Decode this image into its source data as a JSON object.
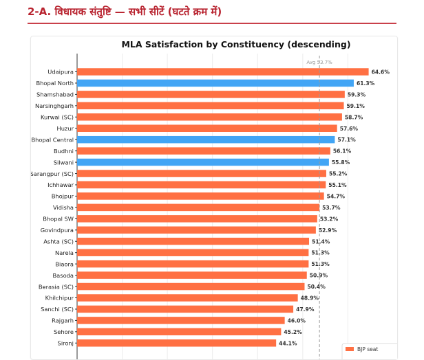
{
  "page": {
    "section_title": "2-A. विधायक संतुष्टि — सभी सीटें (घटते क्रम में)"
  },
  "colors": {
    "section_title": "#b8232f",
    "bjp": "#ff7043",
    "other": "#42a5f5",
    "avg_line": "#999999"
  },
  "chart_data": {
    "type": "bar",
    "orientation": "horizontal",
    "title": "MLA Satisfaction by Constituency (descending)",
    "xlabel": "",
    "ylabel": "",
    "xlim": [
      0,
      70
    ],
    "grid": true,
    "avg_label": "Avg 53.7%",
    "avg_value": 53.7,
    "legend": {
      "position": "bottom-right",
      "items": [
        {
          "label": "BJP seat",
          "color": "#ff7043"
        }
      ]
    },
    "bars": [
      {
        "category": "Udaipura",
        "value": 64.6,
        "label": "64.6%",
        "party": "bjp"
      },
      {
        "category": "Bhopal North",
        "value": 61.3,
        "label": "61.3%",
        "party": "other"
      },
      {
        "category": "Shamshabad",
        "value": 59.3,
        "label": "59.3%",
        "party": "bjp"
      },
      {
        "category": "Narsinghgarh",
        "value": 59.1,
        "label": "59.1%",
        "party": "bjp"
      },
      {
        "category": "Kurwai (SC)",
        "value": 58.7,
        "label": "58.7%",
        "party": "bjp"
      },
      {
        "category": "Huzur",
        "value": 57.6,
        "label": "57.6%",
        "party": "bjp"
      },
      {
        "category": "Bhopal Central",
        "value": 57.1,
        "label": "57.1%",
        "party": "other"
      },
      {
        "category": "Budhni",
        "value": 56.1,
        "label": "56.1%",
        "party": "bjp"
      },
      {
        "category": "Silwani",
        "value": 55.8,
        "label": "55.8%",
        "party": "other"
      },
      {
        "category": "Sarangpur (SC)",
        "value": 55.2,
        "label": "55.2%",
        "party": "bjp"
      },
      {
        "category": "Ichhawar",
        "value": 55.1,
        "label": "55.1%",
        "party": "bjp"
      },
      {
        "category": "Bhojpur",
        "value": 54.7,
        "label": "54.7%",
        "party": "bjp"
      },
      {
        "category": "Vidisha",
        "value": 53.7,
        "label": "53.7%",
        "party": "bjp"
      },
      {
        "category": "Bhopal SW",
        "value": 53.2,
        "label": "53.2%",
        "party": "bjp"
      },
      {
        "category": "Govindpura",
        "value": 52.9,
        "label": "52.9%",
        "party": "bjp"
      },
      {
        "category": "Ashta (SC)",
        "value": 51.4,
        "label": "51.4%",
        "party": "bjp"
      },
      {
        "category": "Narela",
        "value": 51.3,
        "label": "51.3%",
        "party": "bjp"
      },
      {
        "category": "Biaora",
        "value": 51.3,
        "label": "51.3%",
        "party": "bjp"
      },
      {
        "category": "Basoda",
        "value": 50.9,
        "label": "50.9%",
        "party": "bjp"
      },
      {
        "category": "Berasia (SC)",
        "value": 50.4,
        "label": "50.4%",
        "party": "bjp"
      },
      {
        "category": "Khilchipur",
        "value": 48.9,
        "label": "48.9%",
        "party": "bjp"
      },
      {
        "category": "Sanchi (SC)",
        "value": 47.9,
        "label": "47.9%",
        "party": "bjp"
      },
      {
        "category": "Rajgarh",
        "value": 46.0,
        "label": "46.0%",
        "party": "bjp"
      },
      {
        "category": "Sehore",
        "value": 45.2,
        "label": "45.2%",
        "party": "bjp"
      },
      {
        "category": "Sironj",
        "value": 44.1,
        "label": "44.1%",
        "party": "bjp"
      }
    ]
  }
}
